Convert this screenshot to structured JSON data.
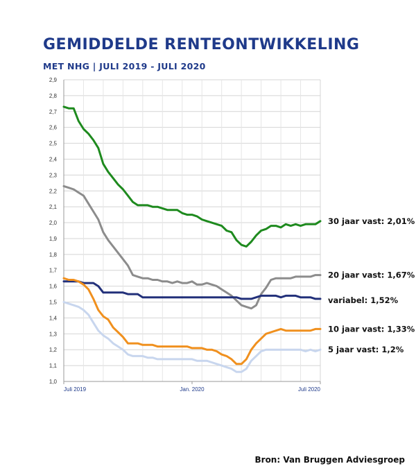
{
  "header": {
    "title": "GEMIDDELDE RENTEONTWIKKELING",
    "subtitle": "MET NHG | JULI 2019 - JULI 2020"
  },
  "footer": {
    "source": "Bron: Van Bruggen Adviesgroep"
  },
  "chart_data": {
    "type": "line",
    "title": "GEMIDDELDE RENTEONTWIKKELING",
    "subtitle": "MET NHG | JULI 2019 - JULI 2020",
    "xlabel": "",
    "ylabel": "",
    "ylim": [
      1.0,
      2.9
    ],
    "yticks": [
      "1,0",
      "1,1",
      "1,2",
      "1,3",
      "1,4",
      "1,5",
      "1,6",
      "1,7",
      "1,8",
      "1,9",
      "2,0",
      "2,1",
      "2,2",
      "2,3",
      "2,4",
      "2,5",
      "2,6",
      "2,7",
      "2,8",
      "2,9"
    ],
    "xticks": [
      {
        "label": "Juli 2019",
        "index": 0
      },
      {
        "label": "Jan. 2020",
        "index": 26
      },
      {
        "label": "Juli 2020",
        "index": 52
      }
    ],
    "grid": true,
    "legend": "inline-right",
    "series": [
      {
        "name": "30 jaar vast: 2,01%",
        "color": "#1e8a1e",
        "values": [
          2.73,
          2.72,
          2.72,
          2.64,
          2.59,
          2.56,
          2.52,
          2.47,
          2.37,
          2.32,
          2.28,
          2.24,
          2.21,
          2.17,
          2.13,
          2.11,
          2.11,
          2.11,
          2.1,
          2.1,
          2.09,
          2.08,
          2.08,
          2.08,
          2.06,
          2.05,
          2.05,
          2.04,
          2.02,
          2.01,
          2.0,
          1.99,
          1.98,
          1.95,
          1.94,
          1.89,
          1.86,
          1.85,
          1.88,
          1.92,
          1.95,
          1.96,
          1.98,
          1.98,
          1.97,
          1.99,
          1.98,
          1.99,
          1.98,
          1.99,
          1.99,
          1.99,
          2.01
        ]
      },
      {
        "name": "20 jaar vast: 1,67%",
        "color": "#8c8c8c",
        "values": [
          2.23,
          2.22,
          2.21,
          2.19,
          2.17,
          2.12,
          2.07,
          2.02,
          1.94,
          1.89,
          1.85,
          1.81,
          1.77,
          1.73,
          1.67,
          1.66,
          1.65,
          1.65,
          1.64,
          1.64,
          1.63,
          1.63,
          1.62,
          1.63,
          1.62,
          1.62,
          1.63,
          1.61,
          1.61,
          1.62,
          1.61,
          1.6,
          1.58,
          1.56,
          1.54,
          1.51,
          1.48,
          1.47,
          1.46,
          1.48,
          1.55,
          1.59,
          1.64,
          1.65,
          1.65,
          1.65,
          1.65,
          1.66,
          1.66,
          1.66,
          1.66,
          1.67,
          1.67
        ]
      },
      {
        "name": "variabel: 1,52%",
        "color": "#22307a",
        "values": [
          1.63,
          1.63,
          1.63,
          1.63,
          1.62,
          1.62,
          1.62,
          1.6,
          1.56,
          1.56,
          1.56,
          1.56,
          1.56,
          1.55,
          1.55,
          1.55,
          1.53,
          1.53,
          1.53,
          1.53,
          1.53,
          1.53,
          1.53,
          1.53,
          1.53,
          1.53,
          1.53,
          1.53,
          1.53,
          1.53,
          1.53,
          1.53,
          1.53,
          1.53,
          1.53,
          1.53,
          1.52,
          1.52,
          1.52,
          1.53,
          1.54,
          1.54,
          1.54,
          1.54,
          1.53,
          1.54,
          1.54,
          1.54,
          1.53,
          1.53,
          1.53,
          1.52,
          1.52
        ]
      },
      {
        "name": "10 jaar vast: 1,33%",
        "color": "#f0901e",
        "values": [
          1.65,
          1.64,
          1.64,
          1.63,
          1.61,
          1.58,
          1.52,
          1.45,
          1.41,
          1.39,
          1.34,
          1.31,
          1.28,
          1.24,
          1.24,
          1.24,
          1.23,
          1.23,
          1.23,
          1.22,
          1.22,
          1.22,
          1.22,
          1.22,
          1.22,
          1.22,
          1.21,
          1.21,
          1.21,
          1.2,
          1.2,
          1.19,
          1.17,
          1.16,
          1.14,
          1.11,
          1.11,
          1.14,
          1.2,
          1.24,
          1.27,
          1.3,
          1.31,
          1.32,
          1.33,
          1.32,
          1.32,
          1.32,
          1.32,
          1.32,
          1.32,
          1.33,
          1.33
        ]
      },
      {
        "name": "5 jaar vast: 1,2%",
        "color": "#c8d6ee",
        "values": [
          1.5,
          1.49,
          1.48,
          1.47,
          1.45,
          1.42,
          1.37,
          1.32,
          1.29,
          1.27,
          1.24,
          1.22,
          1.2,
          1.17,
          1.16,
          1.16,
          1.16,
          1.15,
          1.15,
          1.14,
          1.14,
          1.14,
          1.14,
          1.14,
          1.14,
          1.14,
          1.14,
          1.13,
          1.13,
          1.13,
          1.12,
          1.11,
          1.1,
          1.09,
          1.08,
          1.06,
          1.06,
          1.08,
          1.13,
          1.16,
          1.19,
          1.2,
          1.2,
          1.2,
          1.2,
          1.2,
          1.2,
          1.2,
          1.2,
          1.19,
          1.2,
          1.19,
          1.2
        ]
      }
    ]
  }
}
